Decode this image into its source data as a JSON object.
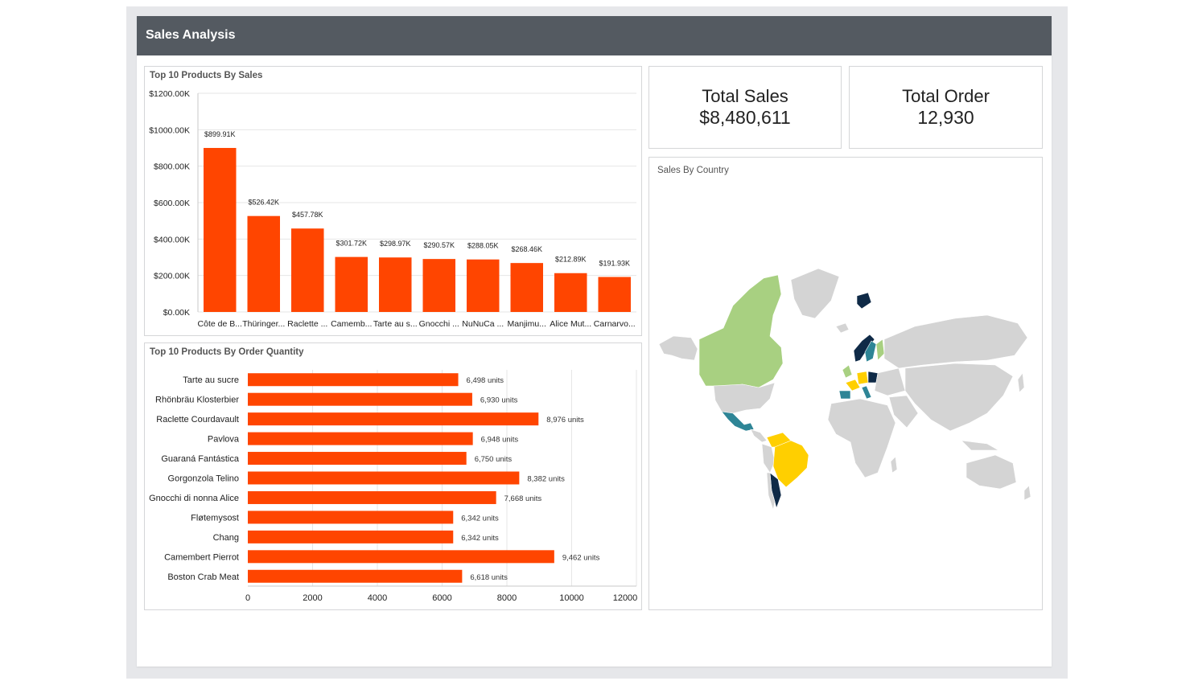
{
  "header": {
    "title": "Sales Analysis"
  },
  "colors": {
    "bar": "#ff4500",
    "header_bg": "#545a61",
    "grid": "#e6e6e6"
  },
  "kpis": {
    "total_sales": {
      "label": "Total Sales",
      "value": "$8,480,611"
    },
    "total_order": {
      "label": "Total Order",
      "value": "12,930"
    }
  },
  "map_panel": {
    "title": "Sales By Country"
  },
  "chart_data": [
    {
      "type": "bar",
      "title": "Top 10 Products By Sales",
      "categories": [
        "Côte de B...",
        "Thüringer...",
        "Raclette ...",
        "Camemb...",
        "Tarte au s...",
        "Gnocchi ...",
        "NuNuCa ...",
        "Manjimu...",
        "Alice Mut...",
        "Carnarvo..."
      ],
      "values": [
        899.91,
        526.42,
        457.78,
        301.72,
        298.97,
        290.57,
        288.05,
        268.46,
        212.89,
        191.93
      ],
      "data_labels": [
        "$899.91K",
        "$526.42K",
        "$457.78K",
        "$301.72K",
        "$298.97K",
        "$290.57K",
        "$288.05K",
        "$268.46K",
        "$212.89K",
        "$191.93K"
      ],
      "ylim": [
        0,
        1200
      ],
      "yticks": [
        "$0.00K",
        "$200.00K",
        "$400.00K",
        "$600.00K",
        "$800.00K",
        "$1000.00K",
        "$1200.00K"
      ],
      "ytick_values": [
        0,
        200,
        400,
        600,
        800,
        1000,
        1200
      ],
      "grid": true
    },
    {
      "type": "bar",
      "orientation": "horizontal",
      "title": "Top 10 Products By Order Quantity",
      "categories": [
        "Tarte au sucre",
        "Rhönbräu Klosterbier",
        "Raclette Courdavault",
        "Pavlova",
        "Guaraná Fantástica",
        "Gorgonzola Telino",
        "Gnocchi di nonna Alice",
        "Fløtemysost",
        "Chang",
        "Camembert Pierrot",
        "Boston Crab Meat"
      ],
      "values": [
        6498,
        6930,
        8976,
        6948,
        6750,
        8382,
        7668,
        6342,
        6342,
        9462,
        6618
      ],
      "data_labels": [
        "6,498 units",
        "6,930 units",
        "8,976 units",
        "6,948 units",
        "6,750 units",
        "8,382 units",
        "7,668 units",
        "6,342 units",
        "6,342 units",
        "9,462 units",
        "6,618 units"
      ],
      "xlim": [
        0,
        12000
      ],
      "xticks": [
        "0",
        "2000",
        "4000",
        "6000",
        "8000",
        "10000",
        "12000"
      ],
      "xtick_values": [
        0,
        2000,
        4000,
        6000,
        8000,
        10000,
        12000
      ],
      "grid": true
    }
  ]
}
